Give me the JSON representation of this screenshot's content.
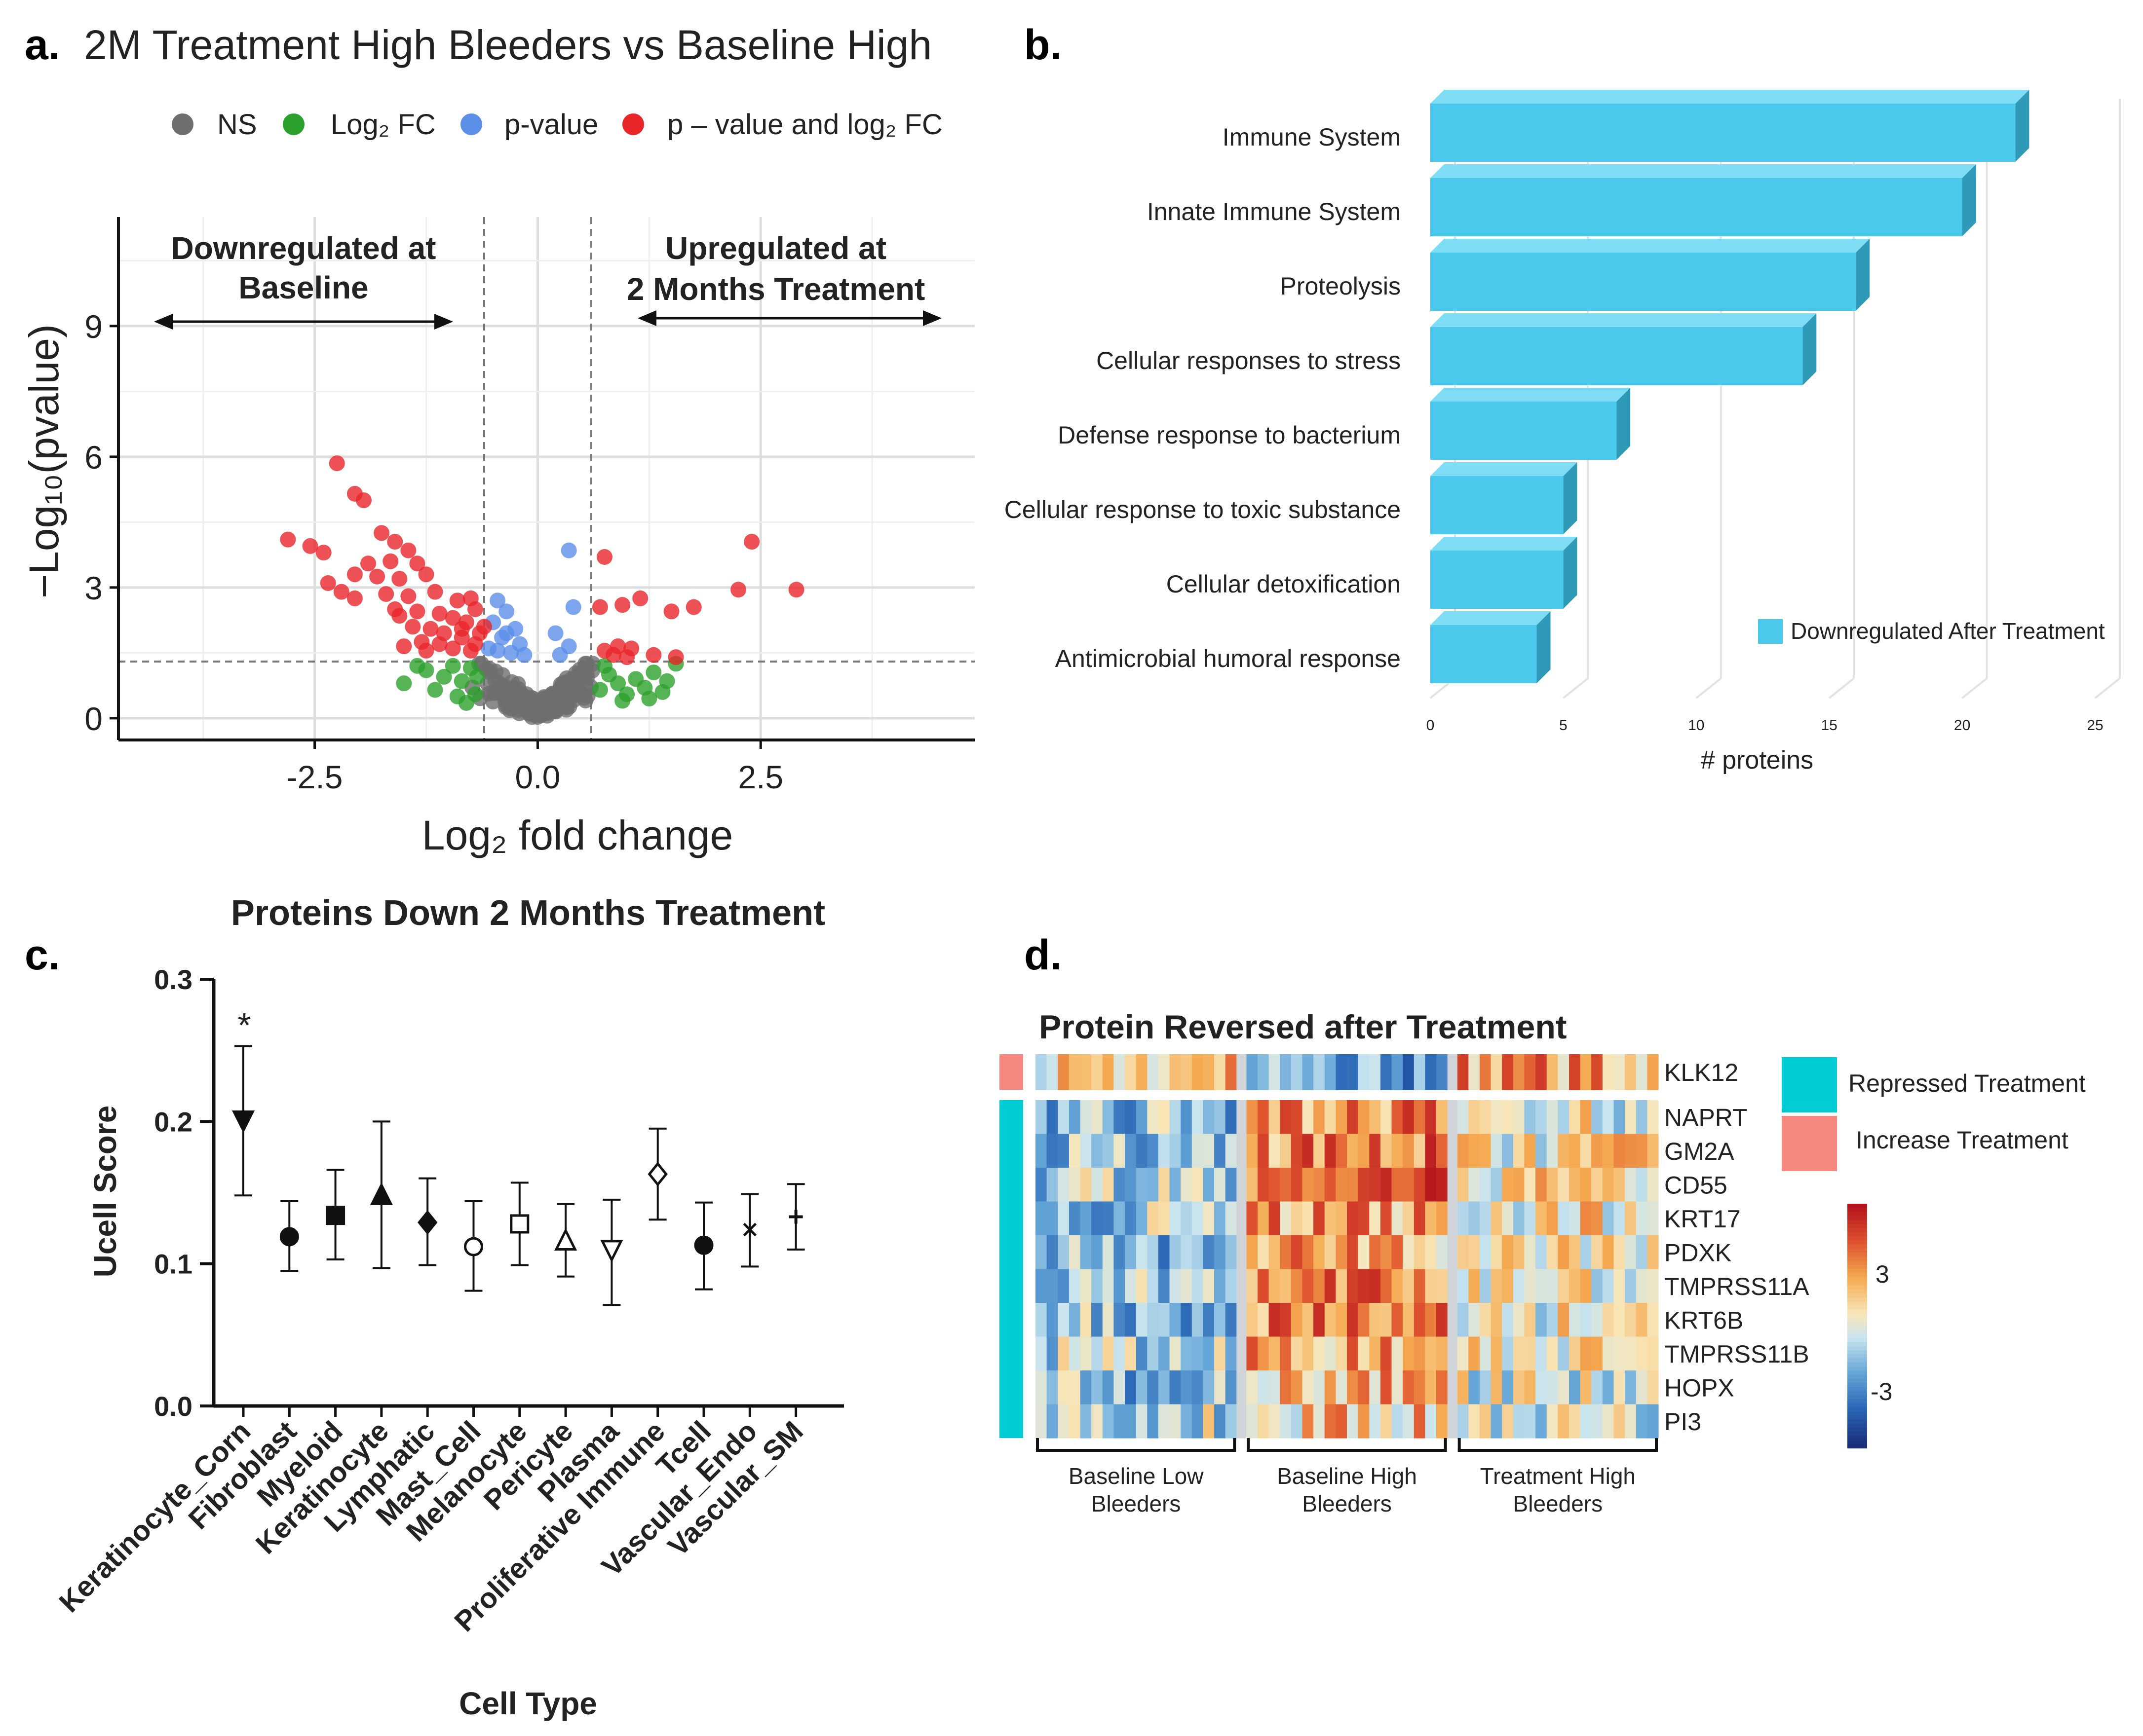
{
  "panel_labels": {
    "a": "a.",
    "b": "b.",
    "c": "c.",
    "d": "d."
  },
  "colors": {
    "ns": "#6e6e6e",
    "fc": "#2ca02c",
    "pval": "#5b8fe8",
    "both": "#e8262a",
    "bar": "#4ac9ec",
    "bar_side": "#2e9ab8",
    "bar_top": "#7fdcf5",
    "teal": "#00ccd3",
    "salmon": "#f5877e"
  },
  "chart_data": [
    {
      "id": "a",
      "type": "scatter",
      "title": "2M Treatment High Bleeders vs Baseline High",
      "legend": [
        {
          "key": "ns",
          "label": "NS"
        },
        {
          "key": "fc",
          "label": "Log₂ FC"
        },
        {
          "key": "pval",
          "label": "p-value"
        },
        {
          "key": "both",
          "label": "p – value and log₂ FC"
        }
      ],
      "xlabel": "Log₂ fold change",
      "ylabel": "−Log₁₀(pvalue)",
      "xlim": [
        -4.7,
        4.9
      ],
      "ylim": [
        -0.5,
        11.5
      ],
      "xticks": [
        -2.5,
        0.0,
        2.5
      ],
      "xtick_labels": [
        "-2.5",
        "0.0",
        "2.5"
      ],
      "yticks": [
        0,
        3,
        6,
        9
      ],
      "ytick_labels": [
        "0",
        "3",
        "6",
        "9"
      ],
      "thresholds": {
        "fc": 0.6,
        "p": 1.3
      },
      "annotations": {
        "down_line1": "Downregulated at",
        "down_line2": "Baseline",
        "up_line1": "Upregulated at",
        "up_line2": "2 Months Treatment"
      },
      "points_both": [
        [
          -2.25,
          5.85
        ],
        [
          -2.05,
          5.15
        ],
        [
          -1.95,
          5.0
        ],
        [
          -2.8,
          4.1
        ],
        [
          -2.55,
          3.95
        ],
        [
          -2.4,
          3.8
        ],
        [
          -1.75,
          4.25
        ],
        [
          -1.6,
          4.05
        ],
        [
          -1.45,
          3.85
        ],
        [
          -1.9,
          3.55
        ],
        [
          -1.65,
          3.6
        ],
        [
          -1.35,
          3.55
        ],
        [
          -2.05,
          3.3
        ],
        [
          -1.8,
          3.25
        ],
        [
          -1.55,
          3.2
        ],
        [
          -1.25,
          3.3
        ],
        [
          -2.35,
          3.1
        ],
        [
          -2.2,
          2.9
        ],
        [
          -2.05,
          2.75
        ],
        [
          -1.7,
          2.85
        ],
        [
          -1.45,
          2.8
        ],
        [
          -1.15,
          2.9
        ],
        [
          -0.9,
          2.7
        ],
        [
          -0.75,
          2.75
        ],
        [
          -1.6,
          2.5
        ],
        [
          -1.35,
          2.45
        ],
        [
          -1.1,
          2.4
        ],
        [
          -0.95,
          2.3
        ],
        [
          -0.8,
          2.2
        ],
        [
          -0.7,
          2.5
        ],
        [
          -1.4,
          2.1
        ],
        [
          -1.2,
          2.05
        ],
        [
          -1.05,
          1.95
        ],
        [
          -0.85,
          1.85
        ],
        [
          -0.65,
          1.95
        ],
        [
          -1.3,
          1.75
        ],
        [
          -1.1,
          1.7
        ],
        [
          -0.95,
          1.6
        ],
        [
          -0.75,
          1.55
        ],
        [
          -1.5,
          1.65
        ],
        [
          -0.85,
          2.05
        ],
        [
          -0.7,
          1.7
        ],
        [
          -1.25,
          1.55
        ],
        [
          -1.55,
          2.35
        ],
        [
          -0.6,
          2.1
        ],
        [
          0.7,
          2.55
        ],
        [
          0.75,
          3.7
        ],
        [
          0.95,
          2.6
        ],
        [
          1.15,
          2.75
        ],
        [
          1.5,
          2.45
        ],
        [
          1.75,
          2.55
        ],
        [
          2.25,
          2.95
        ],
        [
          2.4,
          4.05
        ],
        [
          2.9,
          2.95
        ],
        [
          0.75,
          1.55
        ],
        [
          0.9,
          1.65
        ],
        [
          1.05,
          1.6
        ],
        [
          1.3,
          1.45
        ],
        [
          1.55,
          1.4
        ],
        [
          1.0,
          1.4
        ],
        [
          0.85,
          1.45
        ]
      ],
      "points_pval": [
        [
          -0.45,
          2.7
        ],
        [
          -0.35,
          2.45
        ],
        [
          -0.5,
          2.2
        ],
        [
          -0.25,
          2.05
        ],
        [
          -0.4,
          1.85
        ],
        [
          -0.2,
          1.7
        ],
        [
          -0.45,
          1.55
        ],
        [
          -0.3,
          1.5
        ],
        [
          -0.55,
          1.6
        ],
        [
          -0.35,
          1.95
        ],
        [
          0.2,
          1.95
        ],
        [
          0.35,
          1.65
        ],
        [
          0.4,
          2.55
        ],
        [
          0.35,
          3.85
        ],
        [
          -0.15,
          1.45
        ],
        [
          0.25,
          1.45
        ]
      ],
      "points_fc": [
        [
          -1.5,
          0.8
        ],
        [
          -1.25,
          1.1
        ],
        [
          -1.05,
          0.95
        ],
        [
          -0.95,
          1.2
        ],
        [
          -0.85,
          0.85
        ],
        [
          -0.75,
          1.15
        ],
        [
          -0.7,
          0.55
        ],
        [
          -0.9,
          0.5
        ],
        [
          -1.15,
          0.65
        ],
        [
          -0.8,
          0.35
        ],
        [
          -0.68,
          0.95
        ],
        [
          -1.35,
          1.2
        ],
        [
          0.7,
          0.65
        ],
        [
          0.8,
          1.0
        ],
        [
          0.9,
          0.8
        ],
        [
          1.0,
          0.55
        ],
        [
          1.1,
          0.9
        ],
        [
          1.2,
          0.7
        ],
        [
          1.3,
          1.05
        ],
        [
          1.4,
          0.6
        ],
        [
          1.45,
          0.85
        ],
        [
          0.75,
          1.2
        ],
        [
          1.55,
          1.25
        ],
        [
          0.95,
          0.4
        ],
        [
          1.25,
          0.45
        ]
      ]
    },
    {
      "id": "b",
      "type": "bar",
      "orientation": "horizontal",
      "categories": [
        "Immune System",
        "Innate Immune System",
        "Proteolysis",
        "Cellular responses to stress",
        "Defense response to bacterium",
        "Cellular response to toxic substance",
        "Cellular detoxification",
        "Antimicrobial humoral response"
      ],
      "values": [
        22,
        20,
        16,
        14,
        7,
        5,
        5,
        4
      ],
      "series_name": "Downregulated After Treatment",
      "xlabel": "# proteins",
      "xlim": [
        0,
        25
      ],
      "xticks": [
        0,
        5,
        10,
        15,
        20,
        25
      ],
      "xtick_labels": [
        "0",
        "5",
        "10",
        "15",
        "20",
        "25"
      ]
    },
    {
      "id": "c",
      "type": "scatter",
      "subtype": "errorbar",
      "title": "Proteins Down 2 Months Treatment",
      "xlabel": "Cell Type",
      "ylabel": "Ucell Score",
      "ylim": [
        0.0,
        0.3
      ],
      "yticks": [
        0.0,
        0.1,
        0.2,
        0.3
      ],
      "ytick_labels": [
        "0.0",
        "0.1",
        "0.2",
        "0.3"
      ],
      "categories": [
        "Keratinocyte_Corn",
        "Fibroblast",
        "Myeloid",
        "Keratinocyte",
        "Lymphatic",
        "Mast_Cell",
        "Melanocyte",
        "Pericyte",
        "Plasma",
        "Proliferative Immune",
        "Tcell",
        "Vascular_Endo",
        "Vascular_SM"
      ],
      "values": [
        0.201,
        0.119,
        0.134,
        0.148,
        0.129,
        0.112,
        0.128,
        0.116,
        0.11,
        0.163,
        0.113,
        0.124,
        0.133
      ],
      "error_low": [
        0.148,
        0.095,
        0.103,
        0.097,
        0.099,
        0.081,
        0.099,
        0.091,
        0.071,
        0.131,
        0.082,
        0.098,
        0.11
      ],
      "error_high": [
        0.253,
        0.144,
        0.166,
        0.2,
        0.16,
        0.144,
        0.157,
        0.142,
        0.145,
        0.195,
        0.143,
        0.149,
        0.156
      ],
      "markers": [
        "tri-down-filled",
        "circle-filled",
        "square-filled",
        "tri-up-filled",
        "diamond-filled",
        "circle-open",
        "square-open",
        "tri-up-open",
        "tri-down-open",
        "diamond-open",
        "circle-filled",
        "star",
        "plus"
      ],
      "significance": "*"
    },
    {
      "id": "d",
      "type": "heatmap",
      "title": "Protein Reversed after Treatment",
      "rows": [
        "KLK12",
        "NAPRT",
        "GM2A",
        "CD55",
        "KRT17",
        "PDXK",
        "TMPRSS11A",
        "KRT6B",
        "TMPRSS11B",
        "HOPX",
        "PI3"
      ],
      "row_groups": [
        {
          "label": "Increase Treatment",
          "rows": [
            "KLK12"
          ]
        },
        {
          "label": "Repressed Treatment",
          "rows": [
            "NAPRT",
            "GM2A",
            "CD55",
            "KRT17",
            "PDXK",
            "TMPRSS11A",
            "KRT6B",
            "TMPRSS11B",
            "HOPX",
            "PI3"
          ]
        }
      ],
      "column_groups": [
        {
          "line1": "Baseline Low",
          "line2": "Bleeders",
          "n": 18
        },
        {
          "line1": "Baseline High",
          "line2": "Bleeders",
          "n": 18
        },
        {
          "line1": "Treatment High",
          "line2": "Bleeders",
          "n": 18
        }
      ],
      "legend": {
        "repressed": "Repressed Treatment",
        "increase": "Increase Treatment"
      },
      "colorbar_ticks": [
        3,
        -3
      ],
      "colorbar_tick_labels": [
        "3",
        "-3"
      ],
      "value_range": [
        -5,
        5
      ],
      "group_means": [
        [
          1.2,
          -1.8,
          2.0
        ],
        [
          -1.5,
          2.3,
          0.2
        ],
        [
          -1.2,
          2.6,
          0.6
        ],
        [
          -1.0,
          2.8,
          0.8
        ],
        [
          -1.1,
          2.2,
          0.5
        ],
        [
          -1.3,
          1.8,
          0.3
        ],
        [
          -1.0,
          2.4,
          0.6
        ],
        [
          -1.2,
          2.5,
          0.4
        ],
        [
          -0.9,
          1.9,
          0.3
        ],
        [
          -1.4,
          1.6,
          0.0
        ],
        [
          -0.6,
          1.2,
          -0.4
        ]
      ]
    }
  ]
}
